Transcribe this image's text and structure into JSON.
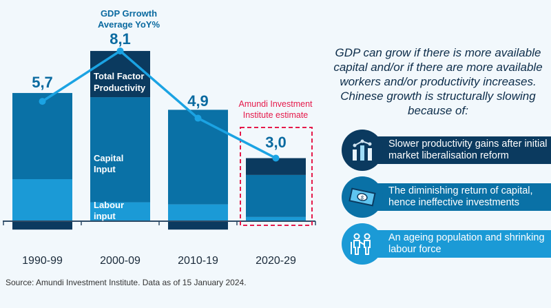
{
  "chart_data": {
    "type": "bar",
    "stacked": true,
    "categories": [
      "1990-99",
      "2000-09",
      "2010-19",
      "2020-29"
    ],
    "series": [
      {
        "name": "Labour input",
        "color": "#1b9ad6",
        "values": [
          2.0,
          0.9,
          0.8,
          0.2
        ]
      },
      {
        "name": "Capital Input",
        "color": "#0a71a6",
        "values": [
          4.1,
          5.0,
          4.5,
          2.0
        ]
      },
      {
        "name": "Total Factor Productivity",
        "color": "#0b3a5f",
        "values": [
          -0.4,
          2.2,
          -0.4,
          0.8
        ]
      }
    ],
    "line": {
      "name": "GDP Grrowth Average YoY%",
      "color": "#1ba3e3",
      "values": [
        5.7,
        8.1,
        4.9,
        3.0
      ],
      "labels": [
        "5,7",
        "8,1",
        "4,9",
        "3,0"
      ]
    },
    "line_title_1": "GDP Grrowth",
    "line_title_2": "Average YoY%",
    "segment_labels": {
      "tfp_1": "Total Factor",
      "tfp_2": "Productivity",
      "capital_1": "Capital",
      "capital_2": "Input",
      "labour_1": "Labour",
      "labour_2": "input"
    },
    "estimate_label_1": "Amundi Investment",
    "estimate_label_2": "Institute estimate",
    "estimate_color": "#e5194a",
    "ylim": [
      -0.6,
      8.5
    ]
  },
  "intro": "GDP can grow if there is more available capital and/or if there are more available workers and/or productivity increases. Chinese growth is structurally slowing because of:",
  "reasons": [
    {
      "icon": "chart-icon",
      "text": "Slower productivity gains after initial market liberalisation reform",
      "color": "#0b3a5f"
    },
    {
      "icon": "money-icon",
      "text": "The diminishing return of capital, hence ineffective investments",
      "color": "#0a71a6"
    },
    {
      "icon": "elderly-people-icon",
      "text": "An ageing population and shrinking labour force",
      "color": "#1b9ad6"
    }
  ],
  "source": "Source: Amundi Investment Institute. Data as of 15 January 2024."
}
